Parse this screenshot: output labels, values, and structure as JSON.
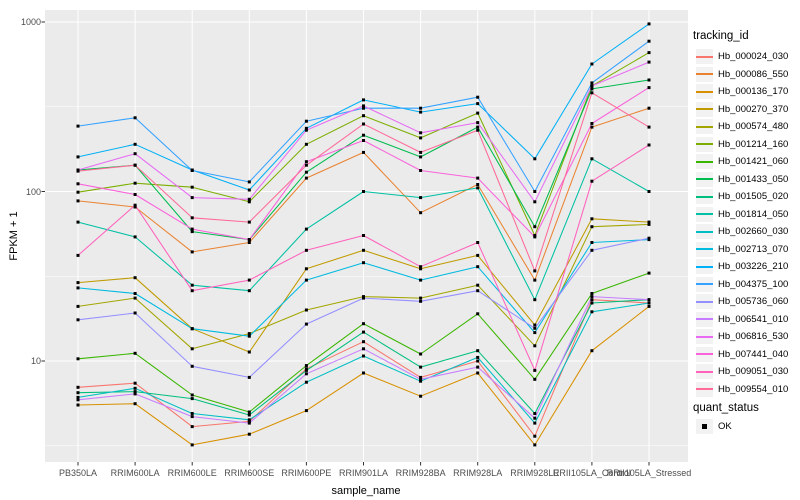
{
  "meta": {
    "panel_bg": "#EBEBEB",
    "grid_color": "#FFFFFF",
    "tick_mark_color": "#333333",
    "tick_label_color": "#4D4D4D",
    "point_color": "#000000"
  },
  "axes": {
    "x_title": "sample_name",
    "y_title": "FPKM + 1",
    "y_tick_labels": [
      "1000",
      "100",
      "10"
    ]
  },
  "legend": {
    "tracking_title": "tracking_id",
    "quant_title": "quant_status",
    "quant_ok_label": "OK"
  },
  "chart_data": {
    "type": "line",
    "title": "",
    "xlabel": "sample_name",
    "ylabel": "FPKM + 1",
    "y_scale": "log10",
    "y_ticks": [
      10,
      100,
      1000
    ],
    "y_minor_ticks": [
      3.162,
      31.62,
      316.2
    ],
    "ylim": [
      2.5,
      1180
    ],
    "grid": true,
    "legend_position": "right",
    "point_marker": "black-square",
    "quant_status_all": "OK",
    "categories": [
      "PB350LA",
      "RRIM600LA",
      "RRIM600LE",
      "RRIM600SE",
      "RRIM600PE",
      "RRIM901LA",
      "RRIM928BA",
      "RRIM928LA",
      "RRIM928LE",
      "RRII105LA_Control",
      "RRII105LA_Stressed"
    ],
    "series": [
      {
        "name": "Hb_000024_030",
        "color": "#F8766D",
        "values": [
          7,
          7.4,
          4.1,
          4.4,
          9,
          13,
          8,
          10,
          3.6,
          23,
          22
        ]
      },
      {
        "name": "Hb_000086_550",
        "color": "#EA8331",
        "values": [
          88,
          81,
          44,
          50,
          120,
          170,
          75,
          110,
          30,
          240,
          310
        ]
      },
      {
        "name": "Hb_000136_170",
        "color": "#D89000",
        "values": [
          5.5,
          5.6,
          3.2,
          3.7,
          5.1,
          8.5,
          6.2,
          8.5,
          3.2,
          11.5,
          21
        ]
      },
      {
        "name": "Hb_000270_370",
        "color": "#C09B00",
        "values": [
          29,
          31,
          15.5,
          11.3,
          35,
          45,
          35,
          42,
          16.3,
          69,
          66
        ]
      },
      {
        "name": "Hb_000574_480",
        "color": "#A3A500",
        "values": [
          21,
          23.5,
          11.8,
          14.5,
          20,
          24,
          23.5,
          28,
          12.3,
          62,
          64
        ]
      },
      {
        "name": "Hb_001214_160",
        "color": "#7CAE00",
        "values": [
          99,
          112,
          106,
          87,
          190,
          280,
          207,
          290,
          55,
          420,
          660
        ]
      },
      {
        "name": "Hb_001421_060",
        "color": "#39B600",
        "values": [
          10.3,
          11.1,
          6.3,
          5,
          9.4,
          16.6,
          11,
          19,
          7.8,
          25,
          33
        ]
      },
      {
        "name": "Hb_001433_050",
        "color": "#00BB4E",
        "values": [
          134,
          143,
          58,
          52,
          130,
          215,
          160,
          240,
          62,
          403,
          455
        ]
      },
      {
        "name": "Hb_001505_020",
        "color": "#00BF7D",
        "values": [
          6.5,
          6.6,
          6,
          4.8,
          8.8,
          14.8,
          9.2,
          11.5,
          4.9,
          22,
          23
        ]
      },
      {
        "name": "Hb_001814_050",
        "color": "#00C1A3",
        "values": [
          66,
          54,
          28,
          26,
          60,
          100,
          92,
          105,
          23,
          156,
          100
        ]
      },
      {
        "name": "Hb_002660_030",
        "color": "#00BFC4",
        "values": [
          6.1,
          6.9,
          4.9,
          4.5,
          7.5,
          10.7,
          7.6,
          10.5,
          4.3,
          19.5,
          22
        ]
      },
      {
        "name": "Hb_002713_070",
        "color": "#00BAE0",
        "values": [
          27,
          25,
          15.5,
          14,
          30,
          38,
          30,
          36,
          14.7,
          50,
          52
        ]
      },
      {
        "name": "Hb_003226_210",
        "color": "#00B0F6",
        "values": [
          160,
          190,
          134,
          102,
          236,
          347,
          294,
          330,
          156,
          565,
          975
        ]
      },
      {
        "name": "Hb_004375_100",
        "color": "#35A2FF",
        "values": [
          243,
          272,
          133,
          114,
          260,
          310,
          310,
          360,
          100,
          437,
          770
        ]
      },
      {
        "name": "Hb_005736_060",
        "color": "#9590FF",
        "values": [
          17.5,
          19.2,
          9.3,
          8,
          16.5,
          23.5,
          22.5,
          26,
          15.6,
          45,
          53
        ]
      },
      {
        "name": "Hb_006541_010",
        "color": "#C77CFF",
        "values": [
          5.9,
          6.4,
          4.7,
          4.3,
          8.4,
          11.8,
          7.8,
          9.2,
          4.6,
          24,
          23
        ]
      },
      {
        "name": "Hb_006816_530",
        "color": "#E76BF3",
        "values": [
          134,
          167,
          92,
          90,
          230,
          320,
          222,
          255,
          87,
          420,
          580
        ]
      },
      {
        "name": "Hb_007441_040",
        "color": "#FA62DB",
        "values": [
          111,
          96,
          60,
          52,
          150,
          200,
          133,
          120,
          54,
          252,
          410
        ]
      },
      {
        "name": "Hb_009051_030",
        "color": "#FF62BC",
        "values": [
          42,
          83,
          26,
          30,
          45,
          55,
          36,
          50,
          8.8,
          115,
          188
        ]
      },
      {
        "name": "Hb_009554_010",
        "color": "#FF6A98",
        "values": [
          132,
          143,
          70,
          66,
          143,
          250,
          170,
          230,
          34,
          382,
          240
        ]
      }
    ]
  }
}
